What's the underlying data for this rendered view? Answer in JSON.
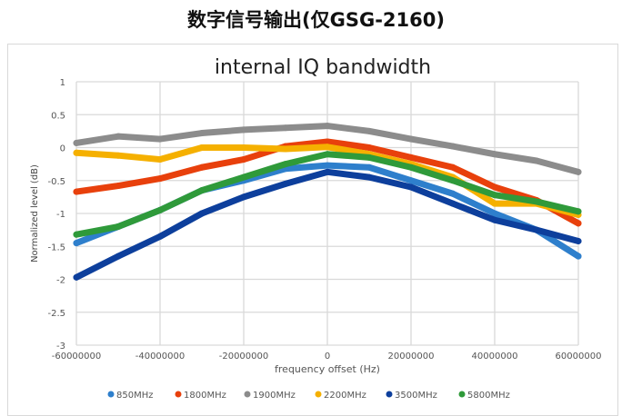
{
  "page": {
    "title": "数字信号输出(仅GSG-2160)"
  },
  "chart_data": {
    "type": "line",
    "title": "internal IQ bandwidth",
    "xlabel": "frequency offset (Hz)",
    "ylabel": "Normalized level (dB)",
    "xlim": [
      -60000000,
      60000000
    ],
    "ylim": [
      -3,
      1
    ],
    "xticks": [
      -60000000,
      -40000000,
      -20000000,
      0,
      20000000,
      40000000,
      60000000
    ],
    "xtick_labels": [
      "-60000000",
      "-40000000",
      "-20000000",
      "0",
      "20000000",
      "40000000",
      "60000000"
    ],
    "yticks": [
      1,
      0.5,
      0,
      -0.5,
      -1,
      -1.5,
      -2,
      -2.5,
      -3
    ],
    "ytick_labels": [
      "1",
      "0.5",
      "0",
      "-0.5",
      "-1",
      "-1.5",
      "-2",
      "-2.5",
      "-3"
    ],
    "grid": true,
    "legend_position": "bottom",
    "x": [
      -60000000,
      -50000000,
      -40000000,
      -30000000,
      -20000000,
      -10000000,
      0,
      10000000,
      20000000,
      30000000,
      40000000,
      50000000,
      60000000
    ],
    "series": [
      {
        "name": "850MHz",
        "color": "#2e7fcc",
        "values": [
          -1.45,
          -1.2,
          -0.95,
          -0.65,
          -0.5,
          -0.32,
          -0.27,
          -0.3,
          -0.5,
          -0.7,
          -1.0,
          -1.25,
          -1.65
        ]
      },
      {
        "name": "1800MHz",
        "color": "#e8400c",
        "values": [
          -0.67,
          -0.58,
          -0.47,
          -0.3,
          -0.18,
          0.02,
          0.09,
          0.0,
          -0.15,
          -0.3,
          -0.6,
          -0.8,
          -1.15
        ]
      },
      {
        "name": "1900MHz",
        "color": "#8c8c8c",
        "values": [
          0.07,
          0.17,
          0.13,
          0.22,
          0.27,
          0.3,
          0.33,
          0.25,
          0.13,
          0.02,
          -0.1,
          -0.2,
          -0.37
        ]
      },
      {
        "name": "2200MHz",
        "color": "#f5b000",
        "values": [
          -0.08,
          -0.12,
          -0.18,
          0.0,
          0.0,
          -0.02,
          0.01,
          -0.1,
          -0.25,
          -0.45,
          -0.85,
          -0.85,
          -1.02
        ]
      },
      {
        "name": "3500MHz",
        "color": "#0d3f9c",
        "values": [
          -1.97,
          -1.65,
          -1.35,
          -1.0,
          -0.75,
          -0.55,
          -0.37,
          -0.45,
          -0.6,
          -0.85,
          -1.1,
          -1.25,
          -1.42
        ]
      },
      {
        "name": "5800MHz",
        "color": "#2f9a3a",
        "values": [
          -1.32,
          -1.2,
          -0.95,
          -0.65,
          -0.45,
          -0.25,
          -0.1,
          -0.15,
          -0.3,
          -0.5,
          -0.72,
          -0.82,
          -0.97
        ]
      }
    ]
  }
}
